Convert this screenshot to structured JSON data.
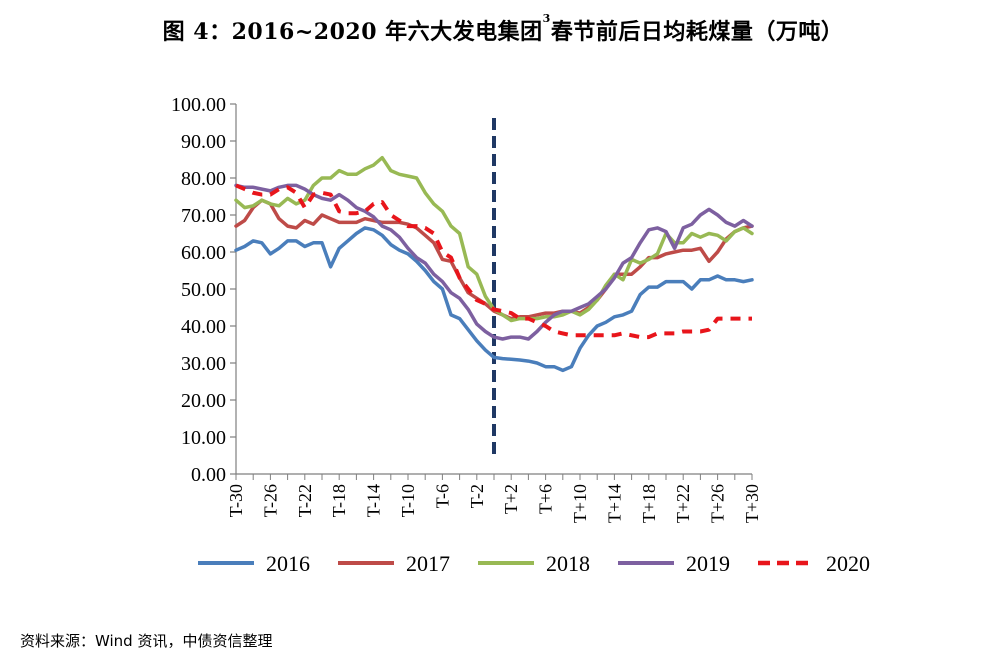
{
  "page": {
    "source_note": "资料来源：Wind 资讯，中债资信整理"
  },
  "chart_data": {
    "type": "line",
    "title_main": "图 4：2016~2020 年六大发电集团",
    "title_sup": "3",
    "title_tail": "春节前后日均耗煤量（万吨）",
    "xlabel": "",
    "ylabel": "",
    "ylim": [
      0,
      100
    ],
    "yticks": [
      "0.00",
      "10.00",
      "20.00",
      "30.00",
      "40.00",
      "50.00",
      "60.00",
      "70.00",
      "80.00",
      "90.00",
      "100.00"
    ],
    "x_range": [
      -30,
      30
    ],
    "xticks": [
      "T-30",
      "T-26",
      "T-22",
      "T-18",
      "T-14",
      "T-10",
      "T-6",
      "T-2",
      "T+2",
      "T+6",
      "T+10",
      "T+14",
      "T+18",
      "T+22",
      "T+26",
      "T+30"
    ],
    "xtick_values": [
      -30,
      -26,
      -22,
      -18,
      -14,
      -10,
      -6,
      -2,
      2,
      6,
      10,
      14,
      18,
      22,
      26,
      30
    ],
    "reference_line": {
      "x": 0,
      "color": "#1F3864",
      "style": "dashed"
    },
    "grid": false,
    "legend_position": "bottom",
    "series": [
      {
        "name": "2016",
        "color": "#4A7EBB",
        "dash": false,
        "points": [
          [
            -30,
            60.5
          ],
          [
            -29,
            61.5
          ],
          [
            -28,
            63
          ],
          [
            -27,
            62.5
          ],
          [
            -26,
            59.5
          ],
          [
            -25,
            61
          ],
          [
            -24,
            63
          ],
          [
            -23,
            63
          ],
          [
            -22,
            61.5
          ],
          [
            -21,
            62.5
          ],
          [
            -20,
            62.5
          ],
          [
            -19,
            56
          ],
          [
            -18,
            61
          ],
          [
            -17,
            63
          ],
          [
            -16,
            65
          ],
          [
            -15,
            66.5
          ],
          [
            -14,
            66
          ],
          [
            -13,
            64.5
          ],
          [
            -12,
            62
          ],
          [
            -11,
            60.5
          ],
          [
            -10,
            59.5
          ],
          [
            -9,
            57.5
          ],
          [
            -8,
            55
          ],
          [
            -7,
            52
          ],
          [
            -6,
            50
          ],
          [
            -5,
            43
          ],
          [
            -4,
            42
          ],
          [
            -3,
            39
          ],
          [
            -2,
            36
          ],
          [
            -1,
            33.5
          ],
          [
            0,
            31.5
          ],
          [
            1,
            31.2
          ],
          [
            2,
            31
          ],
          [
            3,
            30.8
          ],
          [
            4,
            30.5
          ],
          [
            5,
            30
          ],
          [
            6,
            29
          ],
          [
            7,
            29
          ],
          [
            8,
            28
          ],
          [
            9,
            29
          ],
          [
            10,
            34
          ],
          [
            11,
            37.5
          ],
          [
            12,
            40
          ],
          [
            13,
            41
          ],
          [
            14,
            42.5
          ],
          [
            15,
            43
          ],
          [
            16,
            44
          ],
          [
            17,
            48.5
          ],
          [
            18,
            50.5
          ],
          [
            19,
            50.5
          ],
          [
            20,
            52
          ],
          [
            21,
            52
          ],
          [
            22,
            52
          ],
          [
            23,
            50
          ],
          [
            24,
            52.5
          ],
          [
            25,
            52.5
          ],
          [
            26,
            53.5
          ],
          [
            27,
            52.5
          ],
          [
            28,
            52.5
          ],
          [
            29,
            52
          ],
          [
            30,
            52.5
          ]
        ]
      },
      {
        "name": "2017",
        "color": "#BE4B48",
        "dash": false,
        "points": [
          [
            -30,
            67
          ],
          [
            -29,
            68.5
          ],
          [
            -28,
            72
          ],
          [
            -27,
            74
          ],
          [
            -26,
            73
          ],
          [
            -25,
            69
          ],
          [
            -24,
            67
          ],
          [
            -23,
            66.5
          ],
          [
            -22,
            68.5
          ],
          [
            -21,
            67.5
          ],
          [
            -20,
            70
          ],
          [
            -19,
            69
          ],
          [
            -18,
            68
          ],
          [
            -17,
            68
          ],
          [
            -16,
            68
          ],
          [
            -15,
            69
          ],
          [
            -14,
            68.5
          ],
          [
            -13,
            68
          ],
          [
            -12,
            68
          ],
          [
            -11,
            68
          ],
          [
            -10,
            67.5
          ],
          [
            -9,
            66.5
          ],
          [
            -8,
            64.5
          ],
          [
            -7,
            62.5
          ],
          [
            -6,
            58
          ],
          [
            -5,
            57.5
          ],
          [
            -4,
            53
          ],
          [
            -3,
            49
          ],
          [
            -2,
            47.5
          ],
          [
            -1,
            46
          ],
          [
            0,
            44
          ],
          [
            1,
            43
          ],
          [
            2,
            42
          ],
          [
            3,
            42.5
          ],
          [
            4,
            42.5
          ],
          [
            5,
            43
          ],
          [
            6,
            43.5
          ],
          [
            7,
            43.5
          ],
          [
            8,
            44
          ],
          [
            9,
            44
          ],
          [
            10,
            43.5
          ],
          [
            11,
            45
          ],
          [
            12,
            47
          ],
          [
            13,
            50
          ],
          [
            14,
            54
          ],
          [
            15,
            54
          ],
          [
            16,
            54
          ],
          [
            17,
            56
          ],
          [
            18,
            58.5
          ],
          [
            19,
            58.5
          ],
          [
            20,
            59.5
          ],
          [
            21,
            60
          ],
          [
            22,
            60.5
          ],
          [
            23,
            60.5
          ],
          [
            24,
            61
          ],
          [
            25,
            57.5
          ],
          [
            26,
            60
          ],
          [
            27,
            63.5
          ],
          [
            28,
            65.5
          ],
          [
            29,
            66.5
          ],
          [
            30,
            67
          ]
        ]
      },
      {
        "name": "2018",
        "color": "#98B954",
        "dash": false,
        "points": [
          [
            -30,
            74
          ],
          [
            -29,
            72
          ],
          [
            -28,
            72.5
          ],
          [
            -27,
            74
          ],
          [
            -26,
            73
          ],
          [
            -25,
            72.5
          ],
          [
            -24,
            74.5
          ],
          [
            -23,
            73
          ],
          [
            -22,
            74
          ],
          [
            -21,
            78
          ],
          [
            -20,
            80
          ],
          [
            -19,
            80
          ],
          [
            -18,
            82
          ],
          [
            -17,
            81
          ],
          [
            -16,
            81
          ],
          [
            -15,
            82.5
          ],
          [
            -14,
            83.5
          ],
          [
            -13,
            85.5
          ],
          [
            -12,
            82
          ],
          [
            -11,
            81
          ],
          [
            -10,
            80.5
          ],
          [
            -9,
            80
          ],
          [
            -8,
            76
          ],
          [
            -7,
            73
          ],
          [
            -6,
            71
          ],
          [
            -5,
            67
          ],
          [
            -4,
            65
          ],
          [
            -3,
            56
          ],
          [
            -2,
            54
          ],
          [
            -1,
            48
          ],
          [
            0,
            44.5
          ],
          [
            1,
            43
          ],
          [
            2,
            41.5
          ],
          [
            3,
            42
          ],
          [
            4,
            42
          ],
          [
            5,
            42
          ],
          [
            6,
            42.5
          ],
          [
            7,
            42.5
          ],
          [
            8,
            43
          ],
          [
            9,
            44
          ],
          [
            10,
            43
          ],
          [
            11,
            44.5
          ],
          [
            12,
            47
          ],
          [
            13,
            51
          ],
          [
            14,
            54
          ],
          [
            15,
            52.5
          ],
          [
            16,
            58
          ],
          [
            17,
            57
          ],
          [
            18,
            58
          ],
          [
            19,
            59.5
          ],
          [
            20,
            65
          ],
          [
            21,
            62.5
          ],
          [
            22,
            62.5
          ],
          [
            23,
            65
          ],
          [
            24,
            64
          ],
          [
            25,
            65
          ],
          [
            26,
            64.5
          ],
          [
            27,
            63
          ],
          [
            28,
            65.5
          ],
          [
            29,
            66.5
          ],
          [
            30,
            65
          ]
        ]
      },
      {
        "name": "2019",
        "color": "#7D60A0",
        "dash": false,
        "points": [
          [
            -30,
            78
          ],
          [
            -29,
            77.5
          ],
          [
            -28,
            77.5
          ],
          [
            -27,
            77
          ],
          [
            -26,
            76.5
          ],
          [
            -25,
            77.5
          ],
          [
            -24,
            78
          ],
          [
            -23,
            78
          ],
          [
            -22,
            77
          ],
          [
            -21,
            75.5
          ],
          [
            -20,
            74.5
          ],
          [
            -19,
            74
          ],
          [
            -18,
            75.5
          ],
          [
            -17,
            74
          ],
          [
            -16,
            72
          ],
          [
            -15,
            71
          ],
          [
            -14,
            69.5
          ],
          [
            -13,
            67
          ],
          [
            -12,
            66
          ],
          [
            -11,
            64
          ],
          [
            -10,
            61
          ],
          [
            -9,
            58.5
          ],
          [
            -8,
            57
          ],
          [
            -7,
            54
          ],
          [
            -6,
            52
          ],
          [
            -5,
            49
          ],
          [
            -4,
            47.5
          ],
          [
            -3,
            44.5
          ],
          [
            -2,
            40.5
          ],
          [
            -1,
            38.5
          ],
          [
            0,
            37
          ],
          [
            1,
            36.5
          ],
          [
            2,
            37
          ],
          [
            3,
            37
          ],
          [
            4,
            36.5
          ],
          [
            5,
            38.5
          ],
          [
            6,
            41
          ],
          [
            7,
            43
          ],
          [
            8,
            44
          ],
          [
            9,
            44
          ],
          [
            10,
            45
          ],
          [
            11,
            46
          ],
          [
            12,
            48
          ],
          [
            13,
            50
          ],
          [
            14,
            53
          ],
          [
            15,
            57
          ],
          [
            16,
            58.5
          ],
          [
            17,
            62.5
          ],
          [
            18,
            66
          ],
          [
            19,
            66.5
          ],
          [
            20,
            65.5
          ],
          [
            21,
            61
          ],
          [
            22,
            66.5
          ],
          [
            23,
            67.5
          ],
          [
            24,
            70
          ],
          [
            25,
            71.5
          ],
          [
            26,
            70
          ],
          [
            27,
            68
          ],
          [
            28,
            67
          ],
          [
            29,
            68.5
          ],
          [
            30,
            67
          ]
        ]
      },
      {
        "name": "2020",
        "color": "#E8151B",
        "dash": true,
        "points": [
          [
            -30,
            78
          ],
          [
            -29,
            77
          ],
          [
            -28,
            76
          ],
          [
            -27,
            75.5
          ],
          [
            -26,
            75.5
          ],
          [
            -25,
            77
          ],
          [
            -24,
            77.5
          ],
          [
            -23,
            76
          ],
          [
            -22,
            72
          ],
          [
            -21,
            75.5
          ],
          [
            -20,
            76
          ],
          [
            -19,
            75.5
          ],
          [
            -18,
            71
          ],
          [
            -17,
            70.5
          ],
          [
            -16,
            70.5
          ],
          [
            -15,
            71
          ],
          [
            -14,
            73
          ],
          [
            -13,
            73.5
          ],
          [
            -12,
            70
          ],
          [
            -11,
            68.5
          ],
          [
            -10,
            67
          ],
          [
            -9,
            67
          ],
          [
            -8,
            66.5
          ],
          [
            -7,
            65
          ],
          [
            -6,
            60
          ],
          [
            -5,
            58.5
          ],
          [
            -4,
            53
          ],
          [
            -3,
            50
          ],
          [
            -2,
            47
          ],
          [
            -1,
            46
          ],
          [
            0,
            44.5
          ],
          [
            1,
            44
          ],
          [
            2,
            43.5
          ],
          [
            3,
            42
          ],
          [
            4,
            42
          ],
          [
            5,
            41
          ],
          [
            6,
            40
          ],
          [
            7,
            38.5
          ],
          [
            8,
            38
          ],
          [
            9,
            37.5
          ],
          [
            10,
            37.5
          ],
          [
            11,
            37.5
          ],
          [
            12,
            37.5
          ],
          [
            13,
            37.5
          ],
          [
            14,
            37.5
          ],
          [
            15,
            38
          ],
          [
            16,
            37.5
          ],
          [
            17,
            37
          ],
          [
            18,
            37
          ],
          [
            19,
            38
          ],
          [
            20,
            38
          ],
          [
            21,
            38
          ],
          [
            22,
            38.5
          ],
          [
            23,
            38.5
          ],
          [
            24,
            38.5
          ],
          [
            25,
            39
          ],
          [
            26,
            42
          ],
          [
            27,
            42
          ],
          [
            28,
            42
          ],
          [
            29,
            42
          ],
          [
            30,
            42
          ]
        ]
      }
    ]
  }
}
